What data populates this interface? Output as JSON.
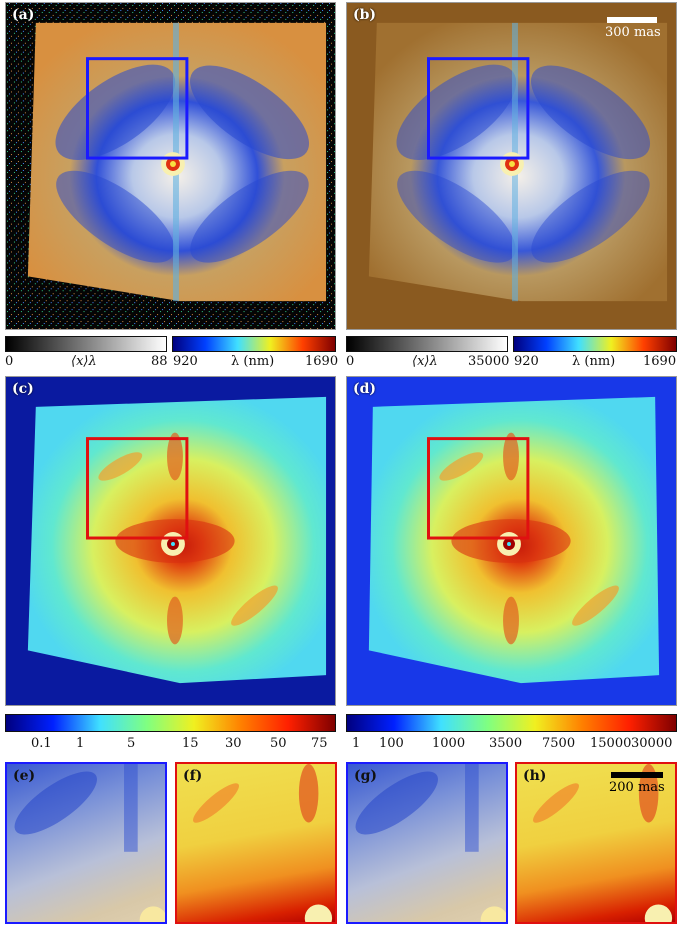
{
  "panels": {
    "a": "(a)",
    "b": "(b)",
    "c": "(c)",
    "d": "(d)",
    "e": "(e)",
    "f": "(f)",
    "g": "(g)",
    "h": "(h)"
  },
  "scalebars": {
    "top": "300 mas",
    "bottom": "200 mas"
  },
  "colorbars": {
    "a_gray": {
      "min": "0",
      "label": "⟨x⟩λ",
      "max": "88"
    },
    "a_lambda": {
      "min": "920",
      "label": "λ (nm)",
      "max": "1690"
    },
    "b_gray": {
      "min": "0",
      "label": "⟨x⟩λ",
      "max": "35000"
    },
    "b_lambda": {
      "min": "920",
      "label": "λ (nm)",
      "max": "1690"
    },
    "c_ticks": [
      "0.1",
      "1",
      "5",
      "15",
      "30",
      "50",
      "75"
    ],
    "d_ticks": [
      "1",
      "100",
      "1000",
      "3500",
      "7500",
      "15000",
      "30000"
    ]
  },
  "colors": {
    "box_blue": "#1a1aff",
    "box_red": "#e01010",
    "jet_blue": "#00007f",
    "jet_cyan": "#40e0ff",
    "jet_yellow": "#f0f020",
    "jet_red": "#d00000"
  }
}
